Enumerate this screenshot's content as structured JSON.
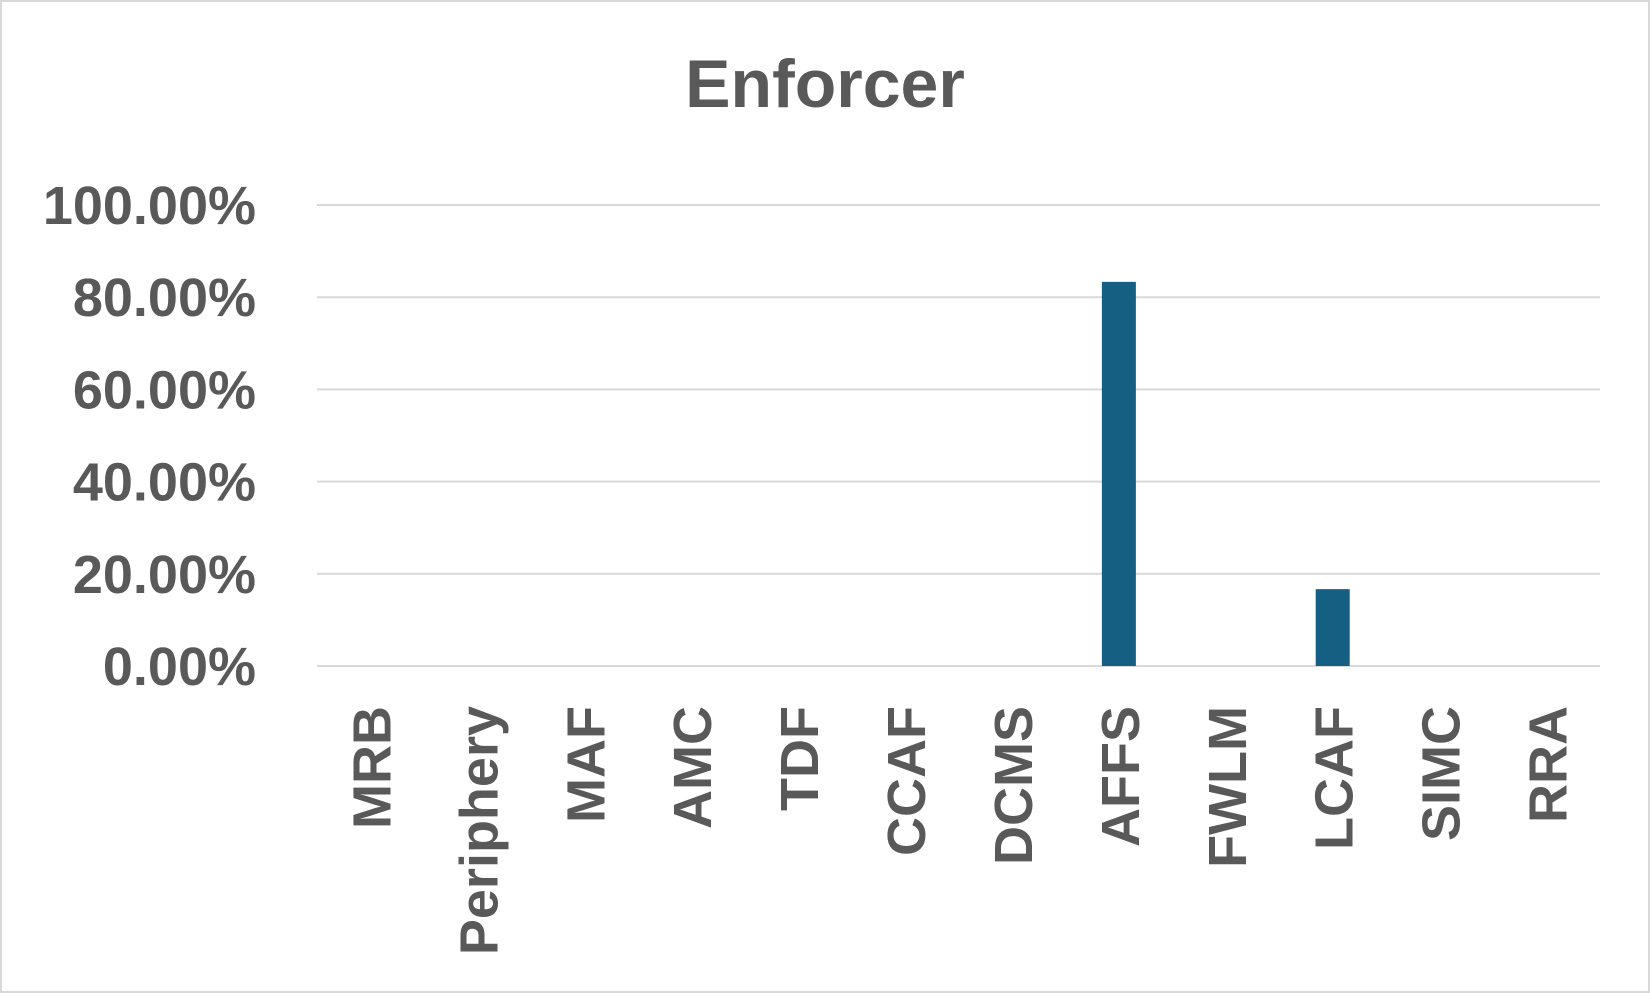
{
  "chart_data": {
    "type": "bar",
    "title": "Enforcer",
    "xlabel": "",
    "ylabel": "",
    "categories": [
      "MRB",
      "Periphery",
      "MAF",
      "AMC",
      "TDF",
      "CCAF",
      "DCMS",
      "AFFS",
      "FWLM",
      "LCAF",
      "SIMC",
      "RRA"
    ],
    "values": [
      0,
      0,
      0,
      0,
      0,
      0,
      0,
      0.8333,
      0,
      0.1667,
      0,
      0
    ],
    "ylim": [
      0,
      1
    ],
    "yticks": [
      "0.00%",
      "20.00%",
      "40.00%",
      "60.00%",
      "80.00%",
      "100.00%"
    ],
    "ytick_values": [
      0,
      0.2,
      0.4,
      0.6,
      0.8,
      1.0
    ],
    "grid": true,
    "legend": "none",
    "colors": {
      "bar": "#156082",
      "grid": "#d9d9d9",
      "text": "#595959",
      "border": "#d9d9d9"
    }
  }
}
